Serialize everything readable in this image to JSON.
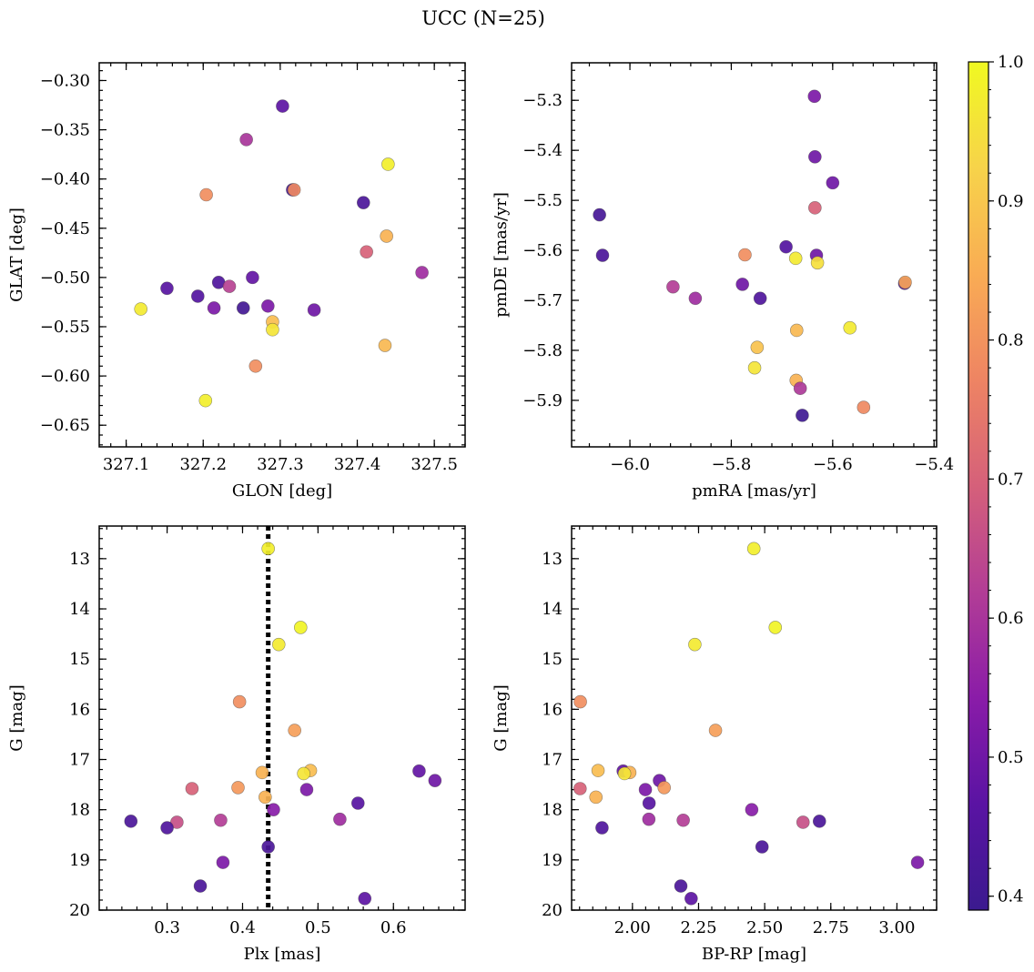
{
  "title": "UCC (N=25)",
  "colormap": {
    "name": "plasma",
    "range": [
      0.39,
      1.0
    ],
    "ticks": [
      0.4,
      0.5,
      0.6,
      0.7,
      0.8,
      0.9,
      1.0
    ],
    "tick_labels": [
      "0.4",
      "0.5",
      "0.6",
      "0.7",
      "0.8",
      "0.9",
      "1.0"
    ],
    "stops": [
      "#3b1a8f",
      "#5a13a3",
      "#8a1ca8",
      "#b23d96",
      "#d5607a",
      "#ee8463",
      "#f9ac54",
      "#f7d34a",
      "#f0f921"
    ]
  },
  "chart_data": [
    {
      "type": "scatter",
      "xlabel": "GLON [deg]",
      "ylabel": "GLAT [deg]",
      "xlim": [
        327.065,
        327.54
      ],
      "ylim": [
        -0.672,
        -0.282
      ],
      "y_inverted": false,
      "xticks": [
        327.1,
        327.2,
        327.3,
        327.4,
        327.5
      ],
      "xtick_labels": [
        "327.1",
        "327.2",
        "327.3",
        "327.4",
        "327.5"
      ],
      "yticks": [
        -0.65,
        -0.6,
        -0.55,
        -0.5,
        -0.45,
        -0.4,
        -0.35,
        -0.3
      ],
      "ytick_labels": [
        "−0.65",
        "−0.60",
        "−0.55",
        "−0.50",
        "−0.45",
        "−0.40",
        "−0.35",
        "−0.30"
      ],
      "points": [
        {
          "x": 327.303,
          "y": -0.326,
          "c": 0.47
        },
        {
          "x": 327.256,
          "y": -0.36,
          "c": 0.6
        },
        {
          "x": 327.44,
          "y": -0.385,
          "c": 0.98
        },
        {
          "x": 327.316,
          "y": -0.411,
          "c": 0.42
        },
        {
          "x": 327.318,
          "y": -0.411,
          "c": 0.78
        },
        {
          "x": 327.204,
          "y": -0.416,
          "c": 0.79
        },
        {
          "x": 327.408,
          "y": -0.424,
          "c": 0.43
        },
        {
          "x": 327.438,
          "y": -0.458,
          "c": 0.86
        },
        {
          "x": 327.412,
          "y": -0.474,
          "c": 0.7
        },
        {
          "x": 327.484,
          "y": -0.495,
          "c": 0.58
        },
        {
          "x": 327.264,
          "y": -0.5,
          "c": 0.48
        },
        {
          "x": 327.22,
          "y": -0.505,
          "c": 0.44
        },
        {
          "x": 327.234,
          "y": -0.509,
          "c": 0.63
        },
        {
          "x": 327.153,
          "y": -0.511,
          "c": 0.46
        },
        {
          "x": 327.193,
          "y": -0.519,
          "c": 0.45
        },
        {
          "x": 327.284,
          "y": -0.529,
          "c": 0.52
        },
        {
          "x": 327.214,
          "y": -0.531,
          "c": 0.52
        },
        {
          "x": 327.252,
          "y": -0.531,
          "c": 0.41
        },
        {
          "x": 327.119,
          "y": -0.532,
          "c": 0.97
        },
        {
          "x": 327.344,
          "y": -0.533,
          "c": 0.5
        },
        {
          "x": 327.29,
          "y": -0.545,
          "c": 0.88
        },
        {
          "x": 327.29,
          "y": -0.553,
          "c": 0.96
        },
        {
          "x": 327.436,
          "y": -0.569,
          "c": 0.87
        },
        {
          "x": 327.268,
          "y": -0.59,
          "c": 0.79
        },
        {
          "x": 327.203,
          "y": -0.625,
          "c": 0.98
        }
      ]
    },
    {
      "type": "scatter",
      "xlabel": "pmRA [mas/yr]",
      "ylabel": "pmDE [mas/yr]",
      "xlim": [
        -6.115,
        -5.395
      ],
      "ylim": [
        -5.993,
        -5.225
      ],
      "y_inverted": false,
      "xticks": [
        -6.0,
        -5.8,
        -5.6,
        -5.4
      ],
      "xtick_labels": [
        "−6.0",
        "−5.8",
        "−5.6",
        "−5.4"
      ],
      "yticks": [
        -5.9,
        -5.8,
        -5.7,
        -5.6,
        -5.5,
        -5.4,
        -5.3
      ],
      "ytick_labels": [
        "−5.9",
        "−5.8",
        "−5.7",
        "−5.6",
        "−5.5",
        "−5.4",
        "−5.3"
      ],
      "points": [
        {
          "x": -5.636,
          "y": -5.292,
          "c": 0.52
        },
        {
          "x": -5.635,
          "y": -5.413,
          "c": 0.5
        },
        {
          "x": -5.6,
          "y": -5.465,
          "c": 0.5
        },
        {
          "x": -5.635,
          "y": -5.515,
          "c": 0.7
        },
        {
          "x": -6.06,
          "y": -5.529,
          "c": 0.42
        },
        {
          "x": -5.692,
          "y": -5.593,
          "c": 0.45
        },
        {
          "x": -6.054,
          "y": -5.61,
          "c": 0.43
        },
        {
          "x": -5.632,
          "y": -5.61,
          "c": 0.5
        },
        {
          "x": -5.773,
          "y": -5.609,
          "c": 0.79
        },
        {
          "x": -5.673,
          "y": -5.616,
          "c": 0.97
        },
        {
          "x": -5.63,
          "y": -5.625,
          "c": 0.95
        },
        {
          "x": -5.458,
          "y": -5.666,
          "c": 0.44
        },
        {
          "x": -5.457,
          "y": -5.664,
          "c": 0.83
        },
        {
          "x": -5.778,
          "y": -5.668,
          "c": 0.5
        },
        {
          "x": -5.915,
          "y": -5.673,
          "c": 0.62
        },
        {
          "x": -5.871,
          "y": -5.696,
          "c": 0.58
        },
        {
          "x": -5.743,
          "y": -5.696,
          "c": 0.44
        },
        {
          "x": -5.566,
          "y": -5.755,
          "c": 0.97
        },
        {
          "x": -5.671,
          "y": -5.76,
          "c": 0.87
        },
        {
          "x": -5.749,
          "y": -5.794,
          "c": 0.89
        },
        {
          "x": -5.754,
          "y": -5.835,
          "c": 0.96
        },
        {
          "x": -5.672,
          "y": -5.86,
          "c": 0.86
        },
        {
          "x": -5.664,
          "y": -5.876,
          "c": 0.61
        },
        {
          "x": -5.539,
          "y": -5.914,
          "c": 0.78
        },
        {
          "x": -5.66,
          "y": -5.93,
          "c": 0.4
        }
      ]
    },
    {
      "type": "scatter",
      "xlabel": "Plx [mas]",
      "ylabel": "G [mag]",
      "xlim": [
        0.21,
        0.695
      ],
      "ylim": [
        12.35,
        20.0
      ],
      "y_inverted": true,
      "xticks": [
        0.3,
        0.4,
        0.5,
        0.6
      ],
      "xtick_labels": [
        "0.3",
        "0.4",
        "0.5",
        "0.6"
      ],
      "yticks": [
        13,
        14,
        15,
        16,
        17,
        18,
        19,
        20
      ],
      "ytick_labels": [
        "13",
        "14",
        "15",
        "16",
        "17",
        "18",
        "19",
        "20"
      ],
      "vline": {
        "x": 0.434,
        "style": "dotted"
      },
      "points": [
        {
          "x": 0.434,
          "y": 12.8,
          "c": 0.98
        },
        {
          "x": 0.477,
          "y": 14.37,
          "c": 0.99
        },
        {
          "x": 0.448,
          "y": 14.71,
          "c": 0.97
        },
        {
          "x": 0.396,
          "y": 15.85,
          "c": 0.79
        },
        {
          "x": 0.469,
          "y": 16.42,
          "c": 0.82
        },
        {
          "x": 0.634,
          "y": 17.23,
          "c": 0.48
        },
        {
          "x": 0.49,
          "y": 17.22,
          "c": 0.88
        },
        {
          "x": 0.426,
          "y": 17.26,
          "c": 0.86
        },
        {
          "x": 0.481,
          "y": 17.28,
          "c": 0.96
        },
        {
          "x": 0.655,
          "y": 17.42,
          "c": 0.5
        },
        {
          "x": 0.333,
          "y": 17.58,
          "c": 0.7
        },
        {
          "x": 0.394,
          "y": 17.56,
          "c": 0.81
        },
        {
          "x": 0.485,
          "y": 17.6,
          "c": 0.52
        },
        {
          "x": 0.43,
          "y": 17.75,
          "c": 0.86
        },
        {
          "x": 0.553,
          "y": 17.87,
          "c": 0.46
        },
        {
          "x": 0.441,
          "y": 18.0,
          "c": 0.54
        },
        {
          "x": 0.529,
          "y": 18.19,
          "c": 0.58
        },
        {
          "x": 0.371,
          "y": 18.21,
          "c": 0.62
        },
        {
          "x": 0.252,
          "y": 18.23,
          "c": 0.43
        },
        {
          "x": 0.313,
          "y": 18.25,
          "c": 0.66
        },
        {
          "x": 0.3,
          "y": 18.36,
          "c": 0.44
        },
        {
          "x": 0.434,
          "y": 18.74,
          "c": 0.43
        },
        {
          "x": 0.374,
          "y": 19.05,
          "c": 0.52
        },
        {
          "x": 0.344,
          "y": 19.52,
          "c": 0.43
        },
        {
          "x": 0.562,
          "y": 19.77,
          "c": 0.47
        }
      ]
    },
    {
      "type": "scatter",
      "xlabel": "BP-RP [mag]",
      "ylabel": "G [mag]",
      "xlim": [
        1.77,
        3.15
      ],
      "ylim": [
        12.35,
        20.0
      ],
      "y_inverted": true,
      "xticks": [
        2.0,
        2.25,
        2.5,
        2.75,
        3.0
      ],
      "xtick_labels": [
        "2.00",
        "2.25",
        "2.50",
        "2.75",
        "3.00"
      ],
      "yticks": [
        13,
        14,
        15,
        16,
        17,
        18,
        19,
        20
      ],
      "ytick_labels": [
        "13",
        "14",
        "15",
        "16",
        "17",
        "18",
        "19",
        "20"
      ],
      "points": [
        {
          "x": 2.459,
          "y": 12.8,
          "c": 0.98
        },
        {
          "x": 2.54,
          "y": 14.37,
          "c": 0.99
        },
        {
          "x": 2.236,
          "y": 14.71,
          "c": 0.97
        },
        {
          "x": 1.803,
          "y": 15.85,
          "c": 0.79
        },
        {
          "x": 2.314,
          "y": 16.42,
          "c": 0.82
        },
        {
          "x": 1.87,
          "y": 17.22,
          "c": 0.88
        },
        {
          "x": 1.965,
          "y": 17.23,
          "c": 0.48
        },
        {
          "x": 1.99,
          "y": 17.26,
          "c": 0.86
        },
        {
          "x": 1.97,
          "y": 17.28,
          "c": 0.96
        },
        {
          "x": 2.102,
          "y": 17.42,
          "c": 0.5
        },
        {
          "x": 1.802,
          "y": 17.58,
          "c": 0.7
        },
        {
          "x": 2.049,
          "y": 17.6,
          "c": 0.52
        },
        {
          "x": 2.12,
          "y": 17.56,
          "c": 0.81
        },
        {
          "x": 1.862,
          "y": 17.75,
          "c": 0.86
        },
        {
          "x": 2.063,
          "y": 17.87,
          "c": 0.46
        },
        {
          "x": 2.451,
          "y": 18.0,
          "c": 0.54
        },
        {
          "x": 2.062,
          "y": 18.19,
          "c": 0.58
        },
        {
          "x": 2.192,
          "y": 18.21,
          "c": 0.62
        },
        {
          "x": 2.707,
          "y": 18.23,
          "c": 0.43
        },
        {
          "x": 2.645,
          "y": 18.25,
          "c": 0.66
        },
        {
          "x": 1.885,
          "y": 18.36,
          "c": 0.44
        },
        {
          "x": 2.49,
          "y": 18.74,
          "c": 0.43
        },
        {
          "x": 3.078,
          "y": 19.05,
          "c": 0.52
        },
        {
          "x": 2.183,
          "y": 19.52,
          "c": 0.43
        },
        {
          "x": 2.222,
          "y": 19.77,
          "c": 0.47
        }
      ]
    }
  ]
}
